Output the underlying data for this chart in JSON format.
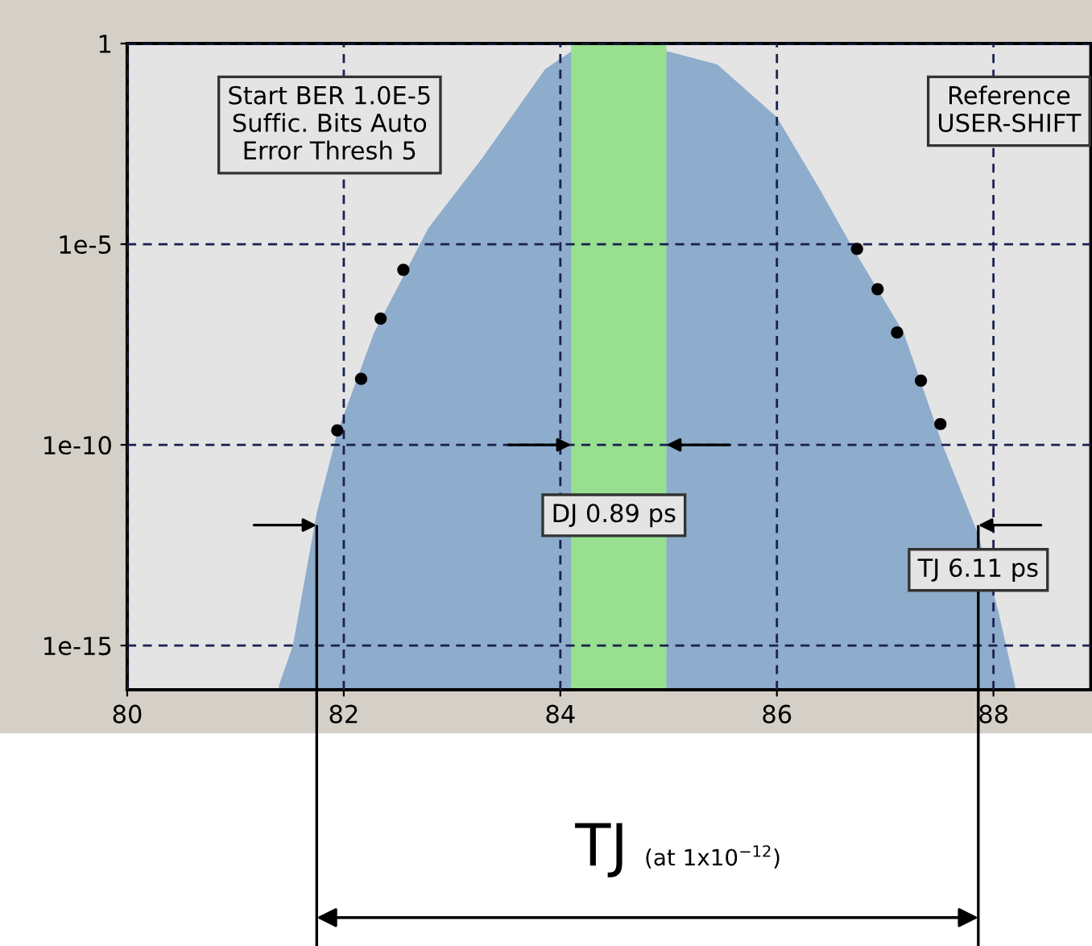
{
  "chart_data": {
    "type": "area",
    "log": "y",
    "grid": true,
    "xlim": [
      80,
      88.9
    ],
    "xticks": [
      80,
      82,
      84,
      86,
      88
    ],
    "ylim": [
      7.9e-17,
      1
    ],
    "yticks": [
      1,
      {
        "value": 1e-05,
        "label": "1e-5"
      },
      {
        "value": 1e-10,
        "label": "1e-10"
      },
      {
        "value": 1e-15,
        "label": "1e-15"
      }
    ],
    "series": [
      {
        "color": "#8eaccc",
        "x": [
          81.4,
          81.53,
          81.75,
          81.94,
          82.28,
          82.78,
          83.27,
          83.86,
          84.1,
          85.0,
          85.45,
          86.0,
          86.39,
          86.68,
          87.17,
          87.53,
          87.86,
          88.05,
          88.2
        ],
        "values": [
          1e-16,
          1e-15,
          2e-12,
          2e-10,
          6.3e-08,
          2.5e-05,
          0.0013,
          0.23,
          0.63,
          0.63,
          0.3,
          0.0145,
          0.00025,
          1e-05,
          6.3e-08,
          1e-10,
          5.8e-13,
          6.3e-15,
          1e-16
        ]
      },
      {
        "type": "scatter",
        "color": "#000000",
        "marker": "circle",
        "x": [
          81.94,
          82.16,
          82.34,
          82.55,
          86.74,
          86.93,
          87.11,
          87.33,
          87.51
        ],
        "values": [
          2.3e-10,
          4.4e-09,
          1.4e-07,
          2.3e-06,
          7.6e-06,
          7.6e-07,
          6.3e-08,
          4e-09,
          3.3e-10
        ]
      }
    ],
    "bands": [
      {
        "axis": "x",
        "from": 84.1,
        "to": 84.98,
        "color": "#98e090"
      }
    ],
    "ref_lines": [
      {
        "axis": "x",
        "value": 81.75
      },
      {
        "axis": "x",
        "value": 87.86
      }
    ],
    "annotations": [
      "Start BER 1.0E-5\nSuffic. Bits Auto\nError Thresh 5",
      "Reference\nUSER-SHIFT",
      "TJ",
      "(at 1x10$^{−12}$)",
      "DJ 0.89 ps",
      {
        "text": "TJ 6.11 ps",
        "x": 87.86,
        "y": 1e-12
      }
    ]
  }
}
